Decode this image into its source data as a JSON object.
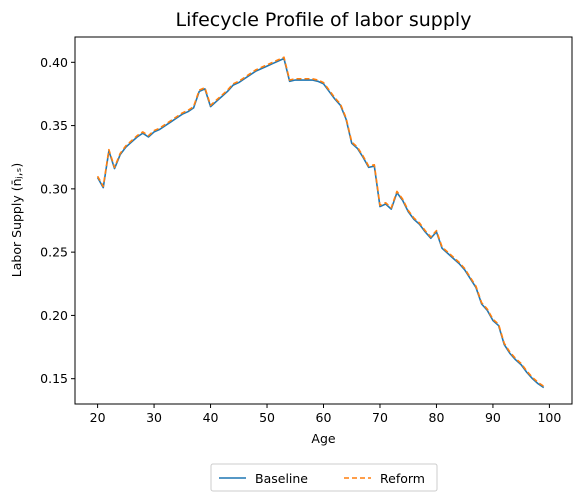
{
  "chart_data": {
    "type": "line",
    "title": "Lifecycle Profile of labor supply",
    "xlabel": "Age",
    "ylabel": "Labor Supply (n̄ⱼ,ₛ)",
    "xlim": [
      16,
      104
    ],
    "ylim": [
      0.13,
      0.42
    ],
    "xticks": [
      20,
      30,
      40,
      50,
      60,
      70,
      80,
      90,
      100
    ],
    "yticks": [
      0.15,
      0.2,
      0.25,
      0.3,
      0.35,
      0.4
    ],
    "ytick_labels": [
      "0.15",
      "0.20",
      "0.25",
      "0.30",
      "0.35",
      "0.40"
    ],
    "grid": false,
    "legend_position": "bottom-center, outside plot",
    "x": [
      20,
      21,
      22,
      23,
      24,
      25,
      26,
      27,
      28,
      29,
      30,
      31,
      32,
      33,
      34,
      35,
      36,
      37,
      38,
      39,
      40,
      41,
      42,
      43,
      44,
      45,
      46,
      47,
      48,
      49,
      50,
      51,
      52,
      53,
      54,
      55,
      56,
      57,
      58,
      59,
      60,
      61,
      62,
      63,
      64,
      65,
      66,
      67,
      68,
      69,
      70,
      71,
      72,
      73,
      74,
      75,
      76,
      77,
      78,
      79,
      80,
      81,
      82,
      83,
      84,
      85,
      86,
      87,
      88,
      89,
      90,
      91,
      92,
      93,
      94,
      95,
      96,
      97,
      98,
      99
    ],
    "series": [
      {
        "name": "Baseline",
        "color": "#1f77b4",
        "style": "solid",
        "values": [
          0.309,
          0.301,
          0.33,
          0.316,
          0.327,
          0.333,
          0.337,
          0.341,
          0.344,
          0.341,
          0.345,
          0.347,
          0.35,
          0.353,
          0.356,
          0.359,
          0.361,
          0.364,
          0.377,
          0.379,
          0.365,
          0.369,
          0.373,
          0.377,
          0.382,
          0.384,
          0.387,
          0.39,
          0.393,
          0.395,
          0.397,
          0.399,
          0.401,
          0.403,
          0.385,
          0.386,
          0.386,
          0.386,
          0.386,
          0.385,
          0.383,
          0.377,
          0.371,
          0.366,
          0.355,
          0.336,
          0.332,
          0.325,
          0.317,
          0.318,
          0.286,
          0.288,
          0.284,
          0.297,
          0.291,
          0.282,
          0.276,
          0.272,
          0.266,
          0.261,
          0.266,
          0.253,
          0.249,
          0.245,
          0.241,
          0.236,
          0.229,
          0.222,
          0.209,
          0.204,
          0.196,
          0.192,
          0.177,
          0.17,
          0.165,
          0.161,
          0.155,
          0.15,
          0.146,
          0.143
        ]
      },
      {
        "name": "Reform",
        "color": "#ff7f0e",
        "style": "dashed",
        "values": [
          0.31,
          0.302,
          0.331,
          0.317,
          0.328,
          0.334,
          0.338,
          0.342,
          0.345,
          0.342,
          0.346,
          0.348,
          0.351,
          0.354,
          0.357,
          0.36,
          0.362,
          0.365,
          0.378,
          0.38,
          0.366,
          0.37,
          0.374,
          0.378,
          0.383,
          0.385,
          0.388,
          0.391,
          0.394,
          0.396,
          0.398,
          0.4,
          0.402,
          0.404,
          0.386,
          0.387,
          0.387,
          0.387,
          0.387,
          0.386,
          0.384,
          0.378,
          0.372,
          0.367,
          0.356,
          0.337,
          0.333,
          0.326,
          0.318,
          0.319,
          0.287,
          0.289,
          0.285,
          0.298,
          0.292,
          0.283,
          0.277,
          0.273,
          0.267,
          0.262,
          0.267,
          0.254,
          0.25,
          0.246,
          0.242,
          0.237,
          0.23,
          0.223,
          0.21,
          0.205,
          0.197,
          0.193,
          0.178,
          0.171,
          0.166,
          0.162,
          0.156,
          0.151,
          0.147,
          0.144
        ]
      }
    ]
  }
}
